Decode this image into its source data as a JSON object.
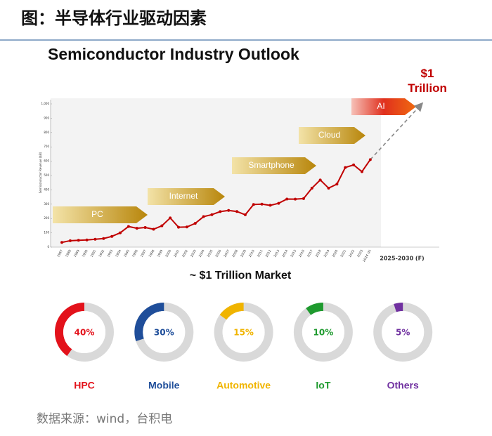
{
  "header": {
    "title": "图：半导体行业驱动因素"
  },
  "chart_data": [
    {
      "type": "line",
      "title": "Semiconductor Industry Outlook",
      "subtitle": "~ $1 Trillion Market",
      "y_label": "Semiconductor Revenue ($B)",
      "categories": [
        "1987",
        "1988",
        "1989",
        "1990",
        "1991",
        "1992",
        "1993",
        "1994",
        "1995",
        "1996",
        "1997",
        "1998",
        "1999",
        "2000",
        "2001",
        "2002",
        "2003",
        "2004",
        "2005",
        "2006",
        "2007",
        "2008",
        "2009",
        "2010",
        "2011",
        "2012",
        "2013",
        "2014",
        "2015",
        "2016",
        "2017",
        "2018",
        "2019",
        "2020",
        "2021",
        "2022",
        "2023",
        "2024 (F)",
        "2025-2030 (F)"
      ],
      "values": [
        33,
        45,
        48,
        50,
        55,
        60,
        75,
        100,
        144,
        132,
        137,
        125,
        149,
        204,
        139,
        141,
        166,
        213,
        227,
        248,
        256,
        249,
        226,
        298,
        300,
        292,
        306,
        336,
        335,
        339,
        412,
        469,
        412,
        440,
        556,
        574,
        527,
        611,
        null
      ],
      "forecast_value": 1000,
      "forecast_label": "$1 Trillion",
      "color": "#c00000",
      "ylim": [
        0,
        1000
      ],
      "yticks": [
        0,
        100,
        200,
        300,
        400,
        500,
        600,
        700,
        800,
        900,
        {
          "value": 1000,
          "label": "1,000"
        }
      ],
      "annotations": [
        "PC",
        "Internet",
        "Smartphone",
        "Cloud",
        "AI"
      ]
    },
    {
      "type": "donut",
      "categories": [
        "HPC",
        "Mobile",
        "Automotive",
        "IoT",
        "Others"
      ],
      "values": [
        40,
        30,
        15,
        10,
        5
      ],
      "value_labels": [
        "40%",
        "30%",
        "15%",
        "10%",
        "5%"
      ],
      "colors": [
        "#e3121b",
        "#1f4e9a",
        "#f0b400",
        "#1e9a2e",
        "#7030a0"
      ]
    }
  ],
  "source": "数据来源：wind，台积电"
}
